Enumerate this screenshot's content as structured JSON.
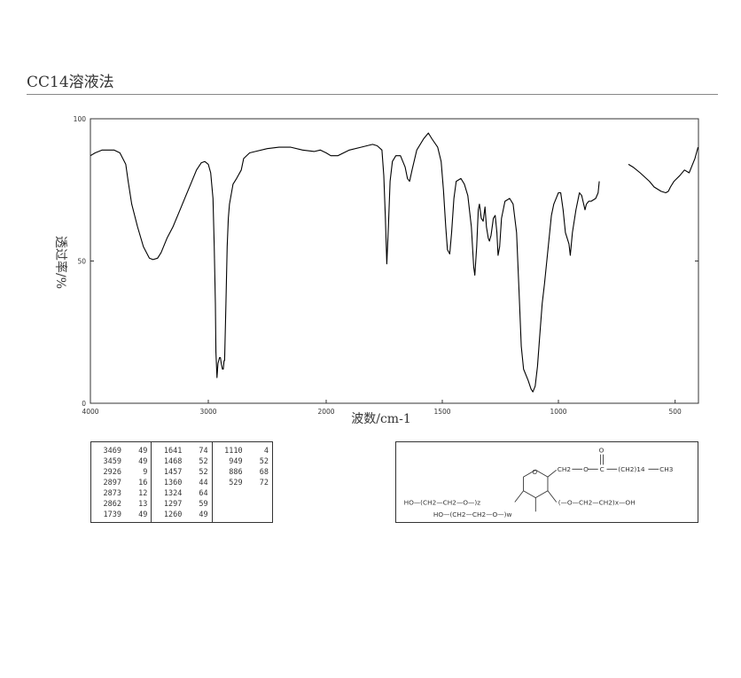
{
  "header": {
    "method": "CC14溶液法"
  },
  "chart_data": {
    "type": "line",
    "xlabel": "波数/cm-1",
    "ylabel": "透过率/%",
    "xlim": [
      4000,
      400
    ],
    "ylim": [
      0,
      100
    ],
    "x_ticks": [
      4000,
      3000,
      2000,
      1500,
      1000,
      500
    ],
    "y_ticks": [
      0,
      50,
      100
    ],
    "grid": false,
    "series": [
      {
        "segments": [
          [
            [
              4000,
              87
            ],
            [
              3960,
              88
            ],
            [
              3900,
              89
            ],
            [
              3800,
              89
            ],
            [
              3750,
              88
            ],
            [
              3700,
              84
            ],
            [
              3680,
              78
            ],
            [
              3650,
              70
            ],
            [
              3600,
              62
            ],
            [
              3550,
              55
            ],
            [
              3500,
              51
            ],
            [
              3469,
              50.5
            ],
            [
              3430,
              51
            ],
            [
              3400,
              53
            ],
            [
              3350,
              58
            ],
            [
              3300,
              62
            ],
            [
              3250,
              67
            ],
            [
              3200,
              72
            ],
            [
              3150,
              77
            ],
            [
              3100,
              82
            ],
            [
              3060,
              84.5
            ],
            [
              3030,
              85
            ],
            [
              3000,
              84
            ],
            [
              2980,
              81
            ],
            [
              2960,
              72
            ],
            [
              2950,
              55
            ],
            [
              2940,
              35
            ],
            [
              2935,
              18
            ],
            [
              2926,
              9
            ],
            [
              2918,
              14
            ],
            [
              2905,
              16
            ],
            [
              2897,
              16
            ],
            [
              2890,
              14
            ],
            [
              2880,
              12
            ],
            [
              2873,
              12
            ],
            [
              2866,
              15
            ],
            [
              2862,
              15
            ],
            [
              2850,
              35
            ],
            [
              2840,
              55
            ],
            [
              2830,
              65
            ],
            [
              2820,
              70
            ],
            [
              2790,
              77
            ],
            [
              2760,
              79
            ],
            [
              2720,
              82
            ],
            [
              2700,
              86
            ],
            [
              2650,
              88
            ],
            [
              2600,
              88.5
            ],
            [
              2500,
              89.5
            ],
            [
              2400,
              90
            ],
            [
              2300,
              90
            ],
            [
              2200,
              89
            ],
            [
              2100,
              88.5
            ],
            [
              2050,
              89
            ],
            [
              2000,
              88
            ],
            [
              1980,
              87
            ],
            [
              1950,
              87
            ],
            [
              1900,
              89
            ],
            [
              1850,
              90
            ],
            [
              1800,
              91
            ],
            [
              1780,
              90.5
            ],
            [
              1760,
              89
            ],
            [
              1752,
              80
            ],
            [
              1745,
              65
            ],
            [
              1739,
              49
            ],
            [
              1732,
              62
            ],
            [
              1725,
              78
            ],
            [
              1715,
              85
            ],
            [
              1700,
              87
            ],
            [
              1680,
              87
            ],
            [
              1660,
              83
            ],
            [
              1650,
              79
            ],
            [
              1641,
              78
            ],
            [
              1630,
              82
            ],
            [
              1610,
              89
            ],
            [
              1580,
              93
            ],
            [
              1560,
              95
            ],
            [
              1545,
              93
            ],
            [
              1520,
              90
            ],
            [
              1505,
              85
            ],
            [
              1495,
              75
            ],
            [
              1485,
              62
            ],
            [
              1478,
              54
            ],
            [
              1468,
              52.5
            ],
            [
              1460,
              60
            ],
            [
              1450,
              72
            ],
            [
              1440,
              78
            ],
            [
              1420,
              79
            ],
            [
              1405,
              77
            ],
            [
              1390,
              73
            ],
            [
              1375,
              62
            ],
            [
              1365,
              48
            ],
            [
              1360,
              45
            ],
            [
              1352,
              55
            ],
            [
              1345,
              68
            ],
            [
              1340,
              70
            ],
            [
              1332,
              65
            ],
            [
              1324,
              64
            ],
            [
              1316,
              69
            ],
            [
              1310,
              62
            ],
            [
              1302,
              58
            ],
            [
              1297,
              57
            ],
            [
              1290,
              59
            ],
            [
              1280,
              65
            ],
            [
              1272,
              66
            ],
            [
              1265,
              60
            ],
            [
              1260,
              52
            ],
            [
              1253,
              55
            ],
            [
              1245,
              65
            ],
            [
              1230,
              71
            ],
            [
              1210,
              72
            ],
            [
              1195,
              70
            ],
            [
              1180,
              60
            ],
            [
              1170,
              40
            ],
            [
              1160,
              20
            ],
            [
              1150,
              12
            ],
            [
              1130,
              8
            ],
            [
              1118,
              5
            ],
            [
              1110,
              4
            ],
            [
              1100,
              6
            ],
            [
              1090,
              13
            ],
            [
              1080,
              24
            ],
            [
              1070,
              35
            ],
            [
              1060,
              42
            ],
            [
              1050,
              50
            ],
            [
              1040,
              58
            ],
            [
              1030,
              66
            ],
            [
              1020,
              70
            ],
            [
              1010,
              72
            ],
            [
              1000,
              74
            ],
            [
              990,
              74
            ],
            [
              980,
              68
            ],
            [
              970,
              60
            ],
            [
              955,
              56
            ],
            [
              949,
              52
            ],
            [
              940,
              60
            ],
            [
              925,
              68
            ],
            [
              910,
              74
            ],
            [
              900,
              73
            ],
            [
              886,
              68
            ],
            [
              880,
              70
            ],
            [
              870,
              71
            ],
            [
              860,
              71
            ],
            [
              840,
              72
            ],
            [
              830,
              74
            ],
            [
              825,
              78
            ]
          ],
          [
            [
              700,
              84
            ],
            [
              680,
              83
            ],
            [
              650,
              81
            ],
            [
              610,
              78
            ],
            [
              590,
              76
            ],
            [
              560,
              74.5
            ],
            [
              540,
              74
            ],
            [
              529,
              74.5
            ],
            [
              520,
              76
            ],
            [
              505,
              78
            ],
            [
              480,
              80
            ],
            [
              460,
              82
            ],
            [
              440,
              81
            ],
            [
              430,
              83
            ],
            [
              415,
              86
            ],
            [
              402,
              90
            ]
          ]
        ]
      }
    ],
    "peak_table": [
      [
        [
          "3469",
          "49"
        ],
        [
          "3459",
          "49"
        ],
        [
          "2926",
          "9"
        ],
        [
          "2897",
          "16"
        ],
        [
          "2873",
          "12"
        ],
        [
          "2862",
          "13"
        ],
        [
          "1739",
          "49"
        ]
      ],
      [
        [
          "1641",
          "74"
        ],
        [
          "1468",
          "52"
        ],
        [
          "1457",
          "52"
        ],
        [
          "1360",
          "44"
        ],
        [
          "1324",
          "64"
        ],
        [
          "1297",
          "59"
        ],
        [
          "1260",
          "49"
        ]
      ],
      [
        [
          "1110",
          "4"
        ],
        [
          "949",
          "52"
        ],
        [
          "886",
          "68"
        ],
        [
          "529",
          "72"
        ]
      ]
    ]
  },
  "structure": {
    "ring_o": "O",
    "carbonyl_o": "O",
    "ch2_ester": "CH2",
    "ester_o": "O",
    "carbonyl_c": "C",
    "alkyl_chain": "(CH2)14",
    "terminal_ch3": "CH3",
    "chain_z": "HO—(CH2—CH2—O—)z",
    "chain_w": "HO—(CH2—CH2—O—)w",
    "chain_x": "(—O—CH2—CH2)x—OH"
  },
  "colors": {
    "line": "#000000",
    "frame": "#333333",
    "rule": "#888888",
    "text": "#333333"
  }
}
